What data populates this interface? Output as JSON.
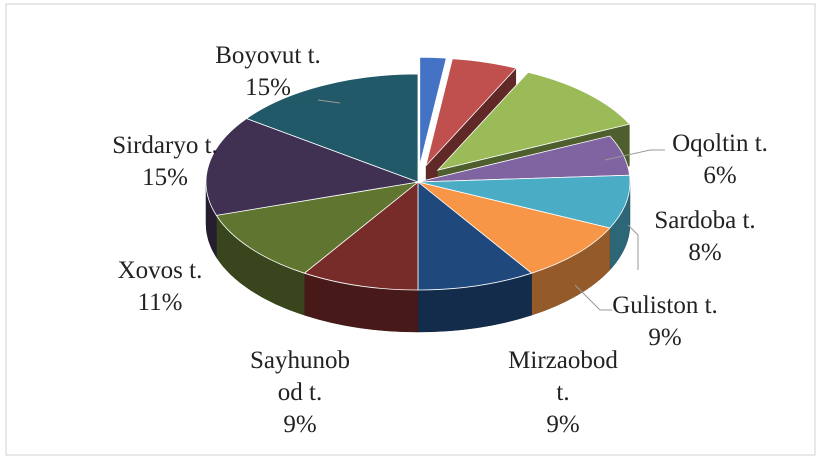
{
  "chart_data": {
    "type": "pie3d",
    "categories": [
      null,
      null,
      null,
      "Oqoltin t.",
      "Sardoba t.",
      "Guliston t.",
      "Mirzaobod t.",
      "Sayhunobod t.",
      "Xovos t.",
      "Sirdaryo t.",
      "Boyovut t."
    ],
    "values": [
      2,
      5,
      11,
      6,
      8,
      9,
      9,
      9,
      11,
      15,
      15
    ],
    "value_labels": [
      null,
      null,
      null,
      "6%",
      "8%",
      "9%",
      "9%",
      "9%",
      "11%",
      "15%",
      "15%"
    ],
    "colors": [
      "#4472c4",
      "#c0504d",
      "#9bbb59",
      "#8064a2",
      "#4bacc6",
      "#f79646",
      "#1f497d",
      "#772c2a",
      "#5f7530",
      "#403152",
      "#215968"
    ],
    "exploded": [
      true,
      true,
      true,
      false,
      false,
      false,
      false,
      false,
      false,
      false,
      false
    ]
  }
}
